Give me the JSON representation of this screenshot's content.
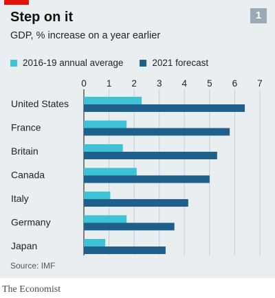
{
  "header": {
    "title": "Step on it",
    "subtitle": "GDP, % increase on a year earlier",
    "badge": "1"
  },
  "source": "Source: IMF",
  "footer": "The Economist",
  "colors": {
    "avg": "#3fc1d6",
    "forecast": "#1f5f8b",
    "background": "#e9eef1",
    "accent": "#e3120b"
  },
  "chart_data": {
    "type": "bar",
    "orientation": "horizontal",
    "title": "Step on it",
    "subtitle": "GDP, % increase on a year earlier",
    "categories": [
      "United States",
      "France",
      "Britain",
      "Canada",
      "Italy",
      "Germany",
      "Japan"
    ],
    "series": [
      {
        "name": "2016-19 annual average",
        "values": [
          2.3,
          1.7,
          1.55,
          2.1,
          1.05,
          1.7,
          0.85
        ]
      },
      {
        "name": "2021 forecast",
        "values": [
          6.4,
          5.8,
          5.3,
          5.0,
          4.15,
          3.6,
          3.25
        ]
      }
    ],
    "xlim": [
      0,
      7
    ],
    "xticks": [
      "0",
      "1",
      "2",
      "3",
      "4",
      "5",
      "6",
      "7"
    ],
    "grid": true,
    "legend_position": "top"
  }
}
